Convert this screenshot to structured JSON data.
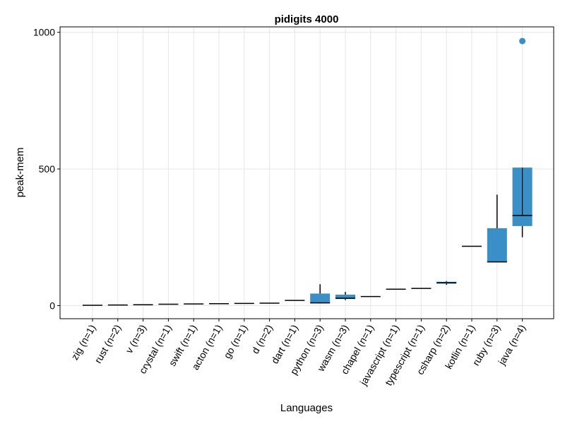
{
  "chart_data": {
    "type": "box",
    "title": "pidigits 4000",
    "xlabel": "Languages",
    "ylabel": "peak-mem",
    "ylim": [
      -48,
      1020
    ],
    "yticks": [
      0,
      500,
      1000
    ],
    "grid": true,
    "legend": "none",
    "box_color": "#3a8fc7",
    "categories": [
      "zig (n=1)",
      "rust (n=2)",
      "v (n=3)",
      "crystal (n=1)",
      "swift (n=1)",
      "acton (n=1)",
      "go (n=1)",
      "d (n=2)",
      "dart (n=1)",
      "python (n=3)",
      "wasm (n=3)",
      "chapel (n=1)",
      "javascript (n=1)",
      "typescript (n=1)",
      "csharp (n=2)",
      "kotlin (n=1)",
      "ruby (n=3)",
      "java (n=4)"
    ],
    "boxes": [
      {
        "min": 1,
        "q1": 1,
        "median": 1,
        "q3": 1,
        "max": 1
      },
      {
        "min": 2,
        "q1": 2,
        "median": 2,
        "q3": 2,
        "max": 2
      },
      {
        "min": 3,
        "q1": 3,
        "median": 3,
        "q3": 3,
        "max": 3
      },
      {
        "min": 5,
        "q1": 5,
        "median": 5,
        "q3": 5,
        "max": 5
      },
      {
        "min": 6,
        "q1": 6,
        "median": 6,
        "q3": 6,
        "max": 6
      },
      {
        "min": 7,
        "q1": 7,
        "median": 7,
        "q3": 7,
        "max": 7
      },
      {
        "min": 8,
        "q1": 8,
        "median": 8,
        "q3": 8,
        "max": 8
      },
      {
        "min": 9,
        "q1": 9,
        "median": 9,
        "q3": 9,
        "max": 9
      },
      {
        "min": 19,
        "q1": 19,
        "median": 19,
        "q3": 19,
        "max": 19
      },
      {
        "min": 8,
        "q1": 9,
        "median": 10,
        "q3": 44,
        "max": 78
      },
      {
        "min": 20,
        "q1": 24,
        "median": 27,
        "q3": 40,
        "max": 50
      },
      {
        "min": 33,
        "q1": 33,
        "median": 33,
        "q3": 33,
        "max": 33
      },
      {
        "min": 60,
        "q1": 60,
        "median": 60,
        "q3": 60,
        "max": 60
      },
      {
        "min": 63,
        "q1": 63,
        "median": 63,
        "q3": 63,
        "max": 63
      },
      {
        "min": 76,
        "q1": 80,
        "median": 84,
        "q3": 87,
        "max": 90
      },
      {
        "min": 217,
        "q1": 217,
        "median": 217,
        "q3": 217,
        "max": 217
      },
      {
        "min": 160,
        "q1": 160,
        "median": 160,
        "q3": 283,
        "max": 406
      },
      {
        "min": 250,
        "q1": 291,
        "median": 330,
        "q3": 505,
        "max": 505
      }
    ],
    "outliers": [
      {
        "category": "java (n=4)",
        "value": 968
      }
    ]
  }
}
